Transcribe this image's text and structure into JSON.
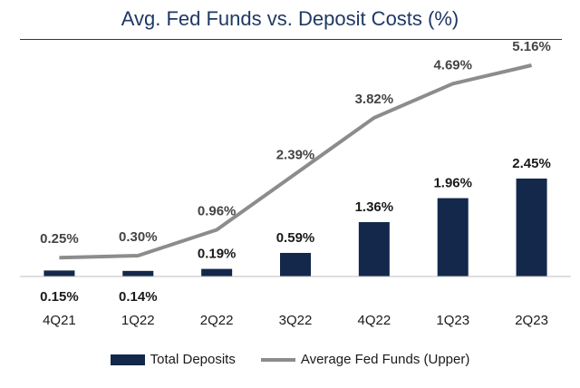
{
  "title": "Avg. Fed Funds vs. Deposit Costs (%)",
  "colors": {
    "bar": "#13284b",
    "line": "#8c8c8c",
    "title": "#1f3864",
    "axis": "#bfbfbf"
  },
  "legend": {
    "bar_label": "Total Deposits",
    "line_label": "Average Fed Funds (Upper)"
  },
  "chart_data": {
    "type": "bar",
    "categories": [
      "4Q21",
      "1Q22",
      "2Q22",
      "3Q22",
      "4Q22",
      "1Q23",
      "2Q23"
    ],
    "series": [
      {
        "name": "Total Deposits",
        "type": "bar",
        "values": [
          0.15,
          0.14,
          0.19,
          0.59,
          1.36,
          1.96,
          2.45
        ],
        "labels": [
          "0.15%",
          "0.14%",
          "0.19%",
          "0.59%",
          "1.36%",
          "1.96%",
          "2.45%"
        ]
      },
      {
        "name": "Average Fed Funds (Upper)",
        "type": "line",
        "values": [
          0.25,
          0.3,
          0.96,
          2.39,
          3.82,
          4.69,
          5.16
        ],
        "labels": [
          "0.25%",
          "0.30%",
          "0.96%",
          "2.39%",
          "3.82%",
          "4.69%",
          "5.16%"
        ]
      }
    ],
    "title": "Avg. Fed Funds vs. Deposit Costs (%)",
    "xlabel": "",
    "ylabel": "",
    "grid": false,
    "legend_position": "bottom"
  }
}
